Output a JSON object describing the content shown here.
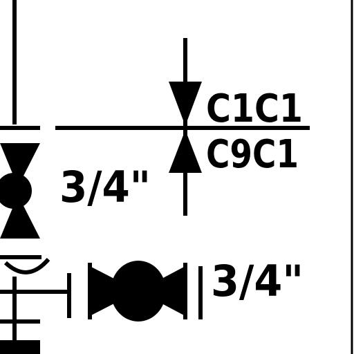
{
  "labels": {
    "line_code_top": "C1C1",
    "line_code_bottom": "C9C1",
    "valve_size_left": "3/4\"",
    "valve_size_right": "3/4\""
  },
  "symbols": [
    {
      "name": "gate-valve-symbol",
      "kind": "gate valve (double triangle, vertical)"
    },
    {
      "name": "check-valve-symbol",
      "kind": "spec break marker (opposed triangles)"
    },
    {
      "name": "ball-valve-symbol",
      "kind": "ball valve (horizontal)"
    },
    {
      "name": "ball-valve-partial-symbol",
      "kind": "valve (partially visible, vertical)"
    }
  ],
  "colors": {
    "ink": "#000000",
    "paper": "#ffffff"
  }
}
